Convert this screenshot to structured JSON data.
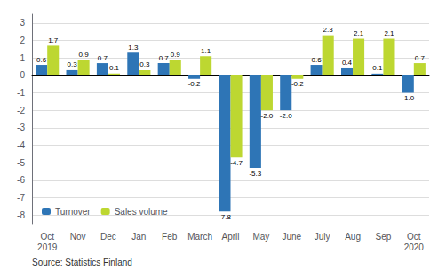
{
  "chart_data": {
    "type": "bar",
    "categories": [
      "Oct\n2019",
      "Nov",
      "Dec",
      "Jan",
      "Feb",
      "March",
      "April",
      "May",
      "June",
      "July",
      "Aug",
      "Sep",
      "Oct\n2020"
    ],
    "series": [
      {
        "name": "Turnover",
        "color": "#2e75b6",
        "values": [
          0.6,
          0.3,
          0.7,
          1.3,
          0.7,
          -0.2,
          -7.8,
          -5.3,
          -2.0,
          0.6,
          0.4,
          0.1,
          -1.0
        ],
        "value_labels": [
          "0.6",
          "0.3",
          "0.7",
          "1.3",
          "0.7",
          "-0.2",
          "-7.8",
          "-5.3",
          "-2.0",
          "0.6",
          "0.4",
          "0.1",
          "-1.0"
        ]
      },
      {
        "name": "Sales volume",
        "color": "#bdd731",
        "values": [
          1.7,
          0.9,
          0.1,
          0.3,
          0.9,
          1.1,
          -4.7,
          -2.0,
          -0.2,
          2.3,
          2.1,
          2.1,
          0.7
        ],
        "value_labels": [
          "1.7",
          "0.9",
          "0.1",
          "0.3",
          "0.9",
          "1.1",
          "-4.7",
          "-2.0",
          "-0.2",
          "2.3",
          "2.1",
          "2.1",
          "0.7"
        ]
      }
    ],
    "ylim": [
      -8.5,
      3.5
    ],
    "yticks": [
      -8,
      -7,
      -6,
      -5,
      -4,
      -3,
      -2,
      -1,
      0,
      1,
      2,
      3
    ],
    "grid": true,
    "legend": "lower left",
    "data_labels": true,
    "annotations": [
      "Source: Statistics Finland"
    ]
  }
}
